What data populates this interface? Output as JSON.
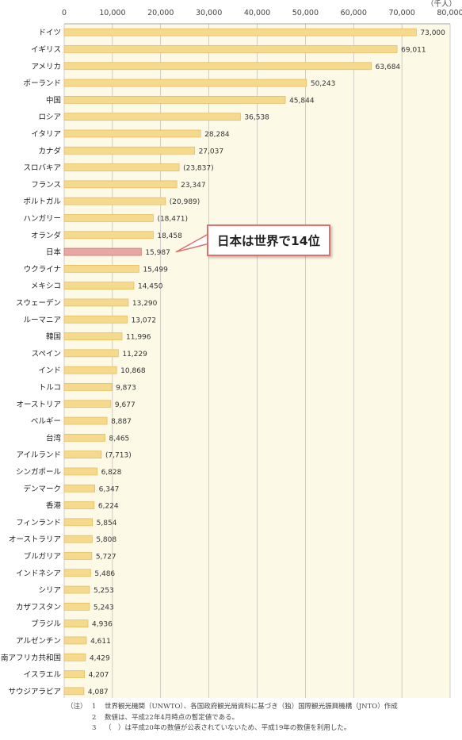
{
  "chart_data": {
    "type": "bar",
    "orientation": "horizontal",
    "unit_label": "（千人）",
    "xlim": [
      0,
      80000
    ],
    "x_ticks": [
      "0",
      "10,000",
      "20,000",
      "30,000",
      "40,000",
      "50,000",
      "60,000",
      "70,000",
      "80,000"
    ],
    "categories": [
      "ドイツ",
      "イギリス",
      "アメリカ",
      "ポーランド",
      "中国",
      "ロシア",
      "イタリア",
      "カナダ",
      "スロバキア",
      "フランス",
      "ポルトガル",
      "ハンガリー",
      "オランダ",
      "日本",
      "ウクライナ",
      "メキシコ",
      "スウェーデン",
      "ルーマニア",
      "韓国",
      "スペイン",
      "インド",
      "トルコ",
      "オーストリア",
      "ベルギー",
      "台湾",
      "アイルランド",
      "シンガポール",
      "デンマーク",
      "香港",
      "フィンランド",
      "オーストラリア",
      "ブルガリア",
      "インドネシア",
      "シリア",
      "カザフスタン",
      "ブラジル",
      "アルゼンチン",
      "南アフリカ共和国",
      "イスラエル",
      "サウジアラビア"
    ],
    "values": [
      73000,
      69011,
      63684,
      50243,
      45844,
      36538,
      28284,
      27037,
      23837,
      23347,
      20989,
      18471,
      18458,
      15987,
      15499,
      14450,
      13290,
      13072,
      11996,
      11229,
      10868,
      9873,
      9677,
      8887,
      8465,
      7713,
      6828,
      6347,
      6224,
      5854,
      5808,
      5727,
      5486,
      5253,
      5243,
      4936,
      4611,
      4429,
      4207,
      4087
    ],
    "value_labels": [
      "73,000",
      "69,011",
      "63,684",
      "50,243",
      "45,844",
      "36,538",
      "28,284",
      "27,037",
      "(23,837)",
      "23,347",
      "(20,989)",
      "(18,471)",
      "18,458",
      "15,987",
      "15,499",
      "14,450",
      "13,290",
      "13,072",
      "11,996",
      "11,229",
      "10,868",
      "9,873",
      "9,677",
      "8,887",
      "8,465",
      "(7,713)",
      "6,828",
      "6,347",
      "6,224",
      "5,854",
      "5,808",
      "5,727",
      "5,486",
      "5,253",
      "5,243",
      "4,936",
      "4,611",
      "4,429",
      "4,207",
      "4,087"
    ],
    "highlight_category": "日本",
    "colors": {
      "bar": "#f5d98c",
      "bar_edge": "#e3b95a",
      "highlight_bar": "#e8a7a4",
      "highlight_edge": "#cc6660",
      "plot_background": "#fdf9e7",
      "grid": "#b0b0b0"
    },
    "grid": true
  },
  "callout": {
    "text": "日本は世界で14位"
  },
  "notes": [
    {
      "prefix": "（注）",
      "num": "1",
      "text": "世界観光機関（UNWTO）、各国政府観光局資料に基づき（独）国際観光振興機構（JNTO）作成"
    },
    {
      "prefix": "",
      "num": "2",
      "text": "数値は、平成22年4月時点の暫定値である。"
    },
    {
      "prefix": "",
      "num": "3",
      "text": "（　）は平成20年の数値が公表されていないため、平成19年の数値を利用した。"
    }
  ]
}
